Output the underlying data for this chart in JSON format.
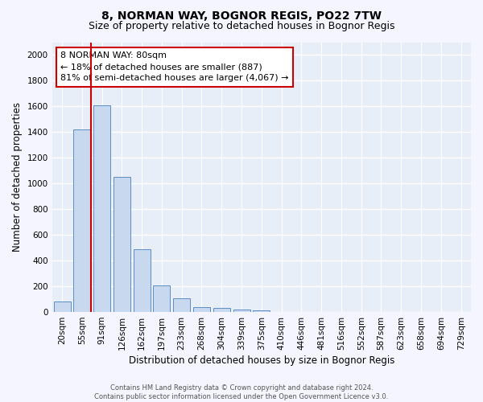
{
  "title1": "8, NORMAN WAY, BOGNOR REGIS, PO22 7TW",
  "title2": "Size of property relative to detached houses in Bognor Regis",
  "xlabel": "Distribution of detached houses by size in Bognor Regis",
  "ylabel": "Number of detached properties",
  "categories": [
    "20sqm",
    "55sqm",
    "91sqm",
    "126sqm",
    "162sqm",
    "197sqm",
    "233sqm",
    "268sqm",
    "304sqm",
    "339sqm",
    "375sqm",
    "410sqm",
    "446sqm",
    "481sqm",
    "516sqm",
    "552sqm",
    "587sqm",
    "623sqm",
    "658sqm",
    "694sqm",
    "729sqm"
  ],
  "bar_values": [
    80,
    1420,
    1610,
    1050,
    490,
    205,
    105,
    40,
    30,
    20,
    15,
    0,
    0,
    0,
    0,
    0,
    0,
    0,
    0,
    0,
    0
  ],
  "bar_color": "#c8d9ef",
  "bar_edge_color": "#5b8ec4",
  "bar_width": 0.85,
  "background_color": "#e8eef8",
  "grid_color": "#ffffff",
  "property_line_x": 1.47,
  "property_line_color": "#cc0000",
  "annotation_text": "8 NORMAN WAY: 80sqm\n← 18% of detached houses are smaller (887)\n81% of semi-detached houses are larger (4,067) →",
  "annotation_box_color": "#cc0000",
  "ylim": [
    0,
    2100
  ],
  "yticks": [
    0,
    200,
    400,
    600,
    800,
    1000,
    1200,
    1400,
    1600,
    1800,
    2000
  ],
  "footnote": "Contains HM Land Registry data © Crown copyright and database right 2024.\nContains public sector information licensed under the Open Government Licence v3.0.",
  "title1_fontsize": 10,
  "title2_fontsize": 9,
  "xlabel_fontsize": 8.5,
  "ylabel_fontsize": 8.5,
  "tick_fontsize": 7.5,
  "annotation_fontsize": 8
}
